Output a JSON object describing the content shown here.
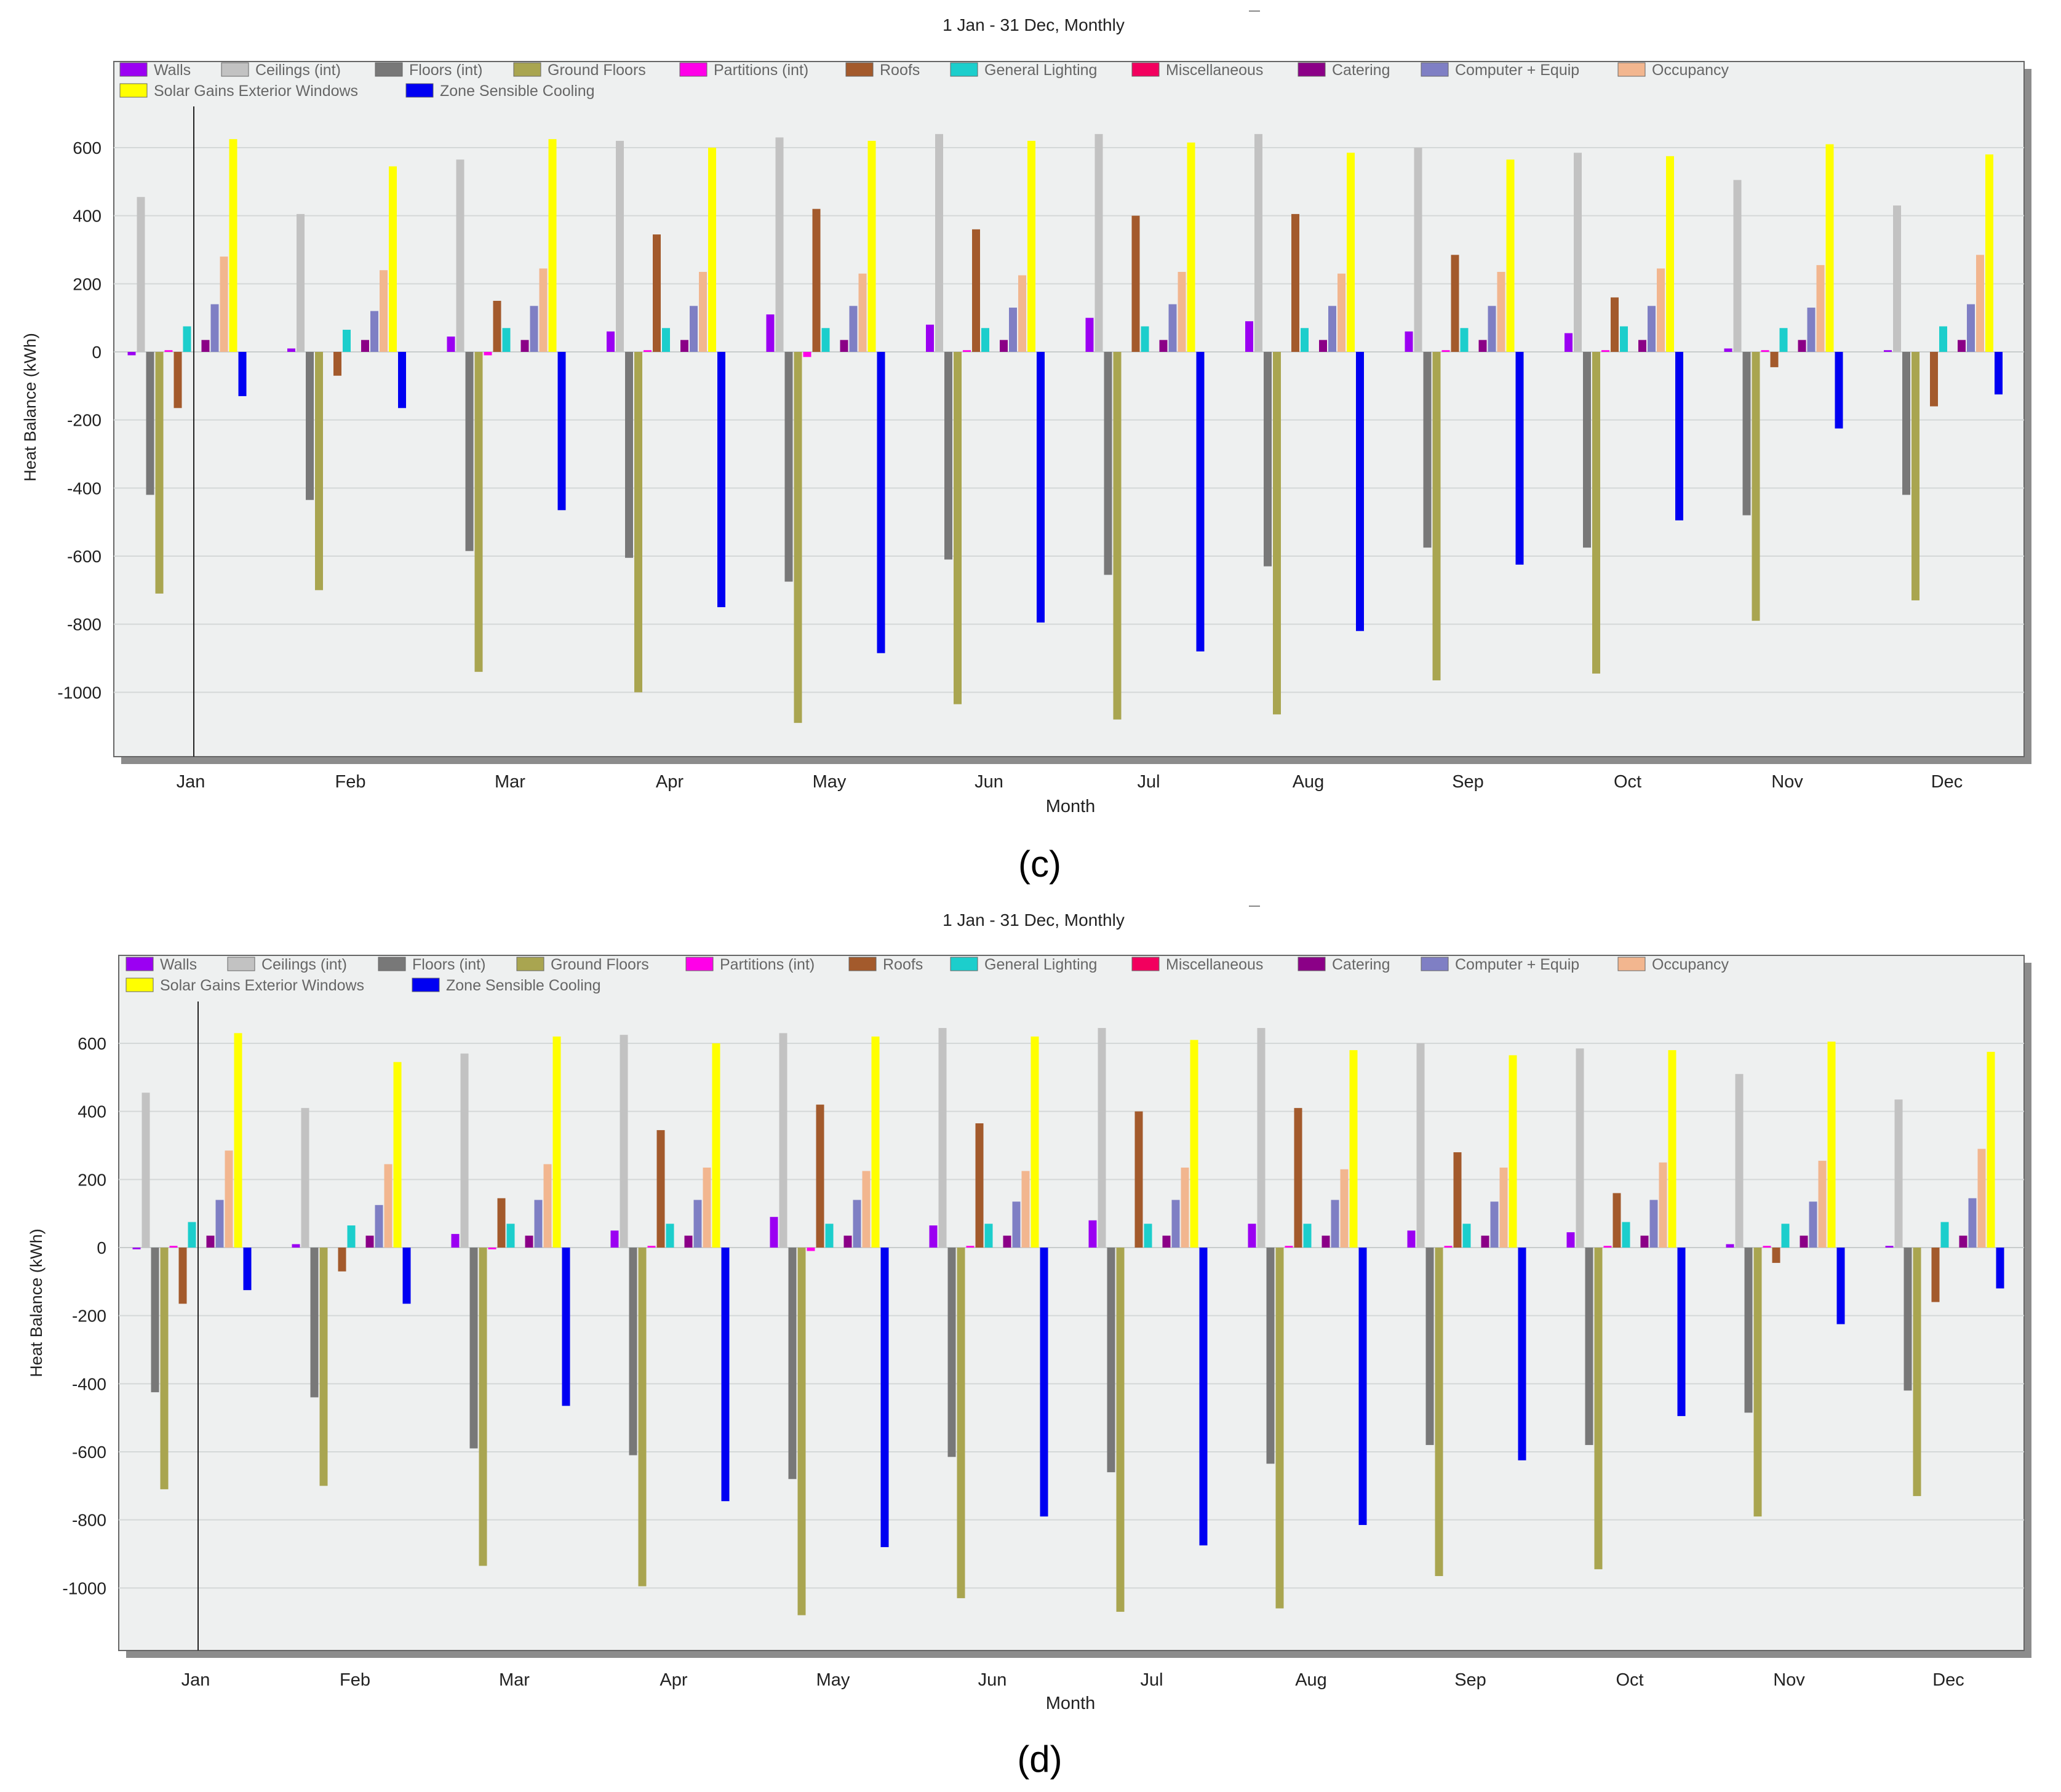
{
  "panels": [
    {
      "id": "c",
      "caption": "(c)"
    },
    {
      "id": "d",
      "caption": "(d)"
    }
  ],
  "chart_data": [
    {
      "type": "bar",
      "panel": "(c)",
      "title": "1 Jan - 31 Dec, Monthly",
      "xlabel": "Month",
      "ylabel": "Heat Balance (kWh)",
      "ylim": [
        -1180,
        730
      ],
      "yticks": [
        600,
        400,
        200,
        0,
        -200,
        -400,
        -600,
        -800,
        -1000
      ],
      "grid": true,
      "legend_position": "top",
      "categories": [
        "Jan",
        "Feb",
        "Mar",
        "Apr",
        "May",
        "Jun",
        "Jul",
        "Aug",
        "Sep",
        "Oct",
        "Nov",
        "Dec"
      ],
      "series": [
        {
          "name": "Walls",
          "color": "#9B00F2",
          "values": [
            -10,
            10,
            45,
            60,
            110,
            80,
            100,
            90,
            60,
            55,
            10,
            5
          ]
        },
        {
          "name": "Ceilings (int)",
          "color": "#C2C2C2",
          "values": [
            455,
            405,
            565,
            620,
            630,
            640,
            640,
            640,
            600,
            585,
            505,
            430
          ]
        },
        {
          "name": "Floors (int)",
          "color": "#787878",
          "values": [
            -420,
            -435,
            -585,
            -605,
            -675,
            -610,
            -655,
            -630,
            -575,
            -575,
            -480,
            -420
          ]
        },
        {
          "name": "Ground Floors",
          "color": "#A9A550",
          "values": [
            -710,
            -700,
            -940,
            -1000,
            -1090,
            -1035,
            -1080,
            -1065,
            -965,
            -945,
            -790,
            -730
          ]
        },
        {
          "name": "Partitions (int)",
          "color": "#FF00E8",
          "values": [
            5,
            0,
            -10,
            5,
            -15,
            5,
            0,
            0,
            5,
            5,
            5,
            0
          ]
        },
        {
          "name": "Roofs",
          "color": "#A35A2C",
          "values": [
            -165,
            -70,
            150,
            345,
            420,
            360,
            400,
            405,
            285,
            160,
            -45,
            -160
          ]
        },
        {
          "name": "General Lighting",
          "color": "#1CCECC",
          "values": [
            75,
            65,
            70,
            70,
            70,
            70,
            75,
            70,
            70,
            75,
            70,
            75
          ]
        },
        {
          "name": "Miscellaneous",
          "color": "#F2005E",
          "values": [
            0,
            0,
            0,
            0,
            0,
            0,
            0,
            0,
            0,
            0,
            0,
            0
          ]
        },
        {
          "name": "Catering",
          "color": "#8B0087",
          "values": [
            35,
            35,
            35,
            35,
            35,
            35,
            35,
            35,
            35,
            35,
            35,
            35
          ]
        },
        {
          "name": "Computer + Equip",
          "color": "#7F7FC4",
          "values": [
            140,
            120,
            135,
            135,
            135,
            130,
            140,
            135,
            135,
            135,
            130,
            140
          ]
        },
        {
          "name": "Occupancy",
          "color": "#F2B68F",
          "values": [
            280,
            240,
            245,
            235,
            230,
            225,
            235,
            230,
            235,
            245,
            255,
            285
          ]
        },
        {
          "name": "Solar Gains Exterior Windows",
          "color": "#FFFF00",
          "values": [
            625,
            545,
            625,
            600,
            620,
            620,
            615,
            585,
            565,
            575,
            610,
            580
          ]
        },
        {
          "name": "Zone Sensible Cooling",
          "color": "#0000F2",
          "values": [
            -130,
            -165,
            -465,
            -750,
            -885,
            -795,
            -880,
            -820,
            -625,
            -495,
            -225,
            -125
          ]
        }
      ]
    },
    {
      "type": "bar",
      "panel": "(d)",
      "title": "1 Jan - 31 Dec, Monthly",
      "xlabel": "Month",
      "ylabel": "Heat Balance (kWh)",
      "ylim": [
        -1180,
        730
      ],
      "yticks": [
        600,
        400,
        200,
        0,
        -200,
        -400,
        -600,
        -800,
        -1000
      ],
      "grid": true,
      "legend_position": "top",
      "categories": [
        "Jan",
        "Feb",
        "Mar",
        "Apr",
        "May",
        "Jun",
        "Jul",
        "Aug",
        "Sep",
        "Oct",
        "Nov",
        "Dec"
      ],
      "series": [
        {
          "name": "Walls",
          "color": "#9B00F2",
          "values": [
            -5,
            10,
            40,
            50,
            90,
            65,
            80,
            70,
            50,
            45,
            10,
            5
          ]
        },
        {
          "name": "Ceilings (int)",
          "color": "#C2C2C2",
          "values": [
            455,
            410,
            570,
            625,
            630,
            645,
            645,
            645,
            600,
            585,
            510,
            435
          ]
        },
        {
          "name": "Floors (int)",
          "color": "#787878",
          "values": [
            -425,
            -440,
            -590,
            -610,
            -680,
            -615,
            -660,
            -635,
            -580,
            -580,
            -485,
            -420
          ]
        },
        {
          "name": "Ground Floors",
          "color": "#A9A550",
          "values": [
            -710,
            -700,
            -935,
            -995,
            -1080,
            -1030,
            -1070,
            -1060,
            -965,
            -945,
            -790,
            -730
          ]
        },
        {
          "name": "Partitions (int)",
          "color": "#FF00E8",
          "values": [
            5,
            0,
            -5,
            5,
            -10,
            5,
            0,
            5,
            5,
            5,
            5,
            0
          ]
        },
        {
          "name": "Roofs",
          "color": "#A35A2C",
          "values": [
            -165,
            -70,
            145,
            345,
            420,
            365,
            400,
            410,
            280,
            160,
            -45,
            -160
          ]
        },
        {
          "name": "General Lighting",
          "color": "#1CCECC",
          "values": [
            75,
            65,
            70,
            70,
            70,
            70,
            70,
            70,
            70,
            75,
            70,
            75
          ]
        },
        {
          "name": "Miscellaneous",
          "color": "#F2005E",
          "values": [
            0,
            0,
            0,
            0,
            0,
            0,
            0,
            0,
            0,
            0,
            0,
            0
          ]
        },
        {
          "name": "Catering",
          "color": "#8B0087",
          "values": [
            35,
            35,
            35,
            35,
            35,
            35,
            35,
            35,
            35,
            35,
            35,
            35
          ]
        },
        {
          "name": "Computer + Equip",
          "color": "#7F7FC4",
          "values": [
            140,
            125,
            140,
            140,
            140,
            135,
            140,
            140,
            135,
            140,
            135,
            145
          ]
        },
        {
          "name": "Occupancy",
          "color": "#F2B68F",
          "values": [
            285,
            245,
            245,
            235,
            225,
            225,
            235,
            230,
            235,
            250,
            255,
            290
          ]
        },
        {
          "name": "Solar Gains Exterior Windows",
          "color": "#FFFF00",
          "values": [
            630,
            545,
            620,
            600,
            620,
            620,
            610,
            580,
            565,
            580,
            605,
            575
          ]
        },
        {
          "name": "Zone Sensible Cooling",
          "color": "#0000F2",
          "values": [
            -125,
            -165,
            -465,
            -745,
            -880,
            -790,
            -875,
            -815,
            -625,
            -495,
            -225,
            -120
          ]
        }
      ]
    }
  ]
}
